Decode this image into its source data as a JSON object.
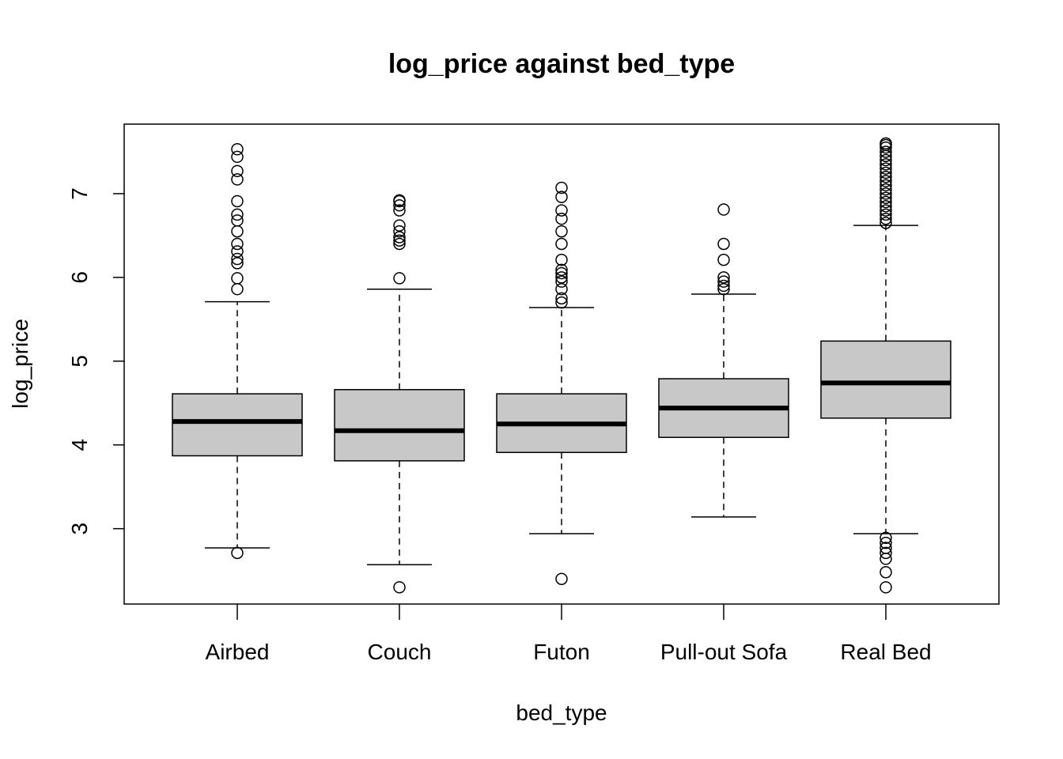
{
  "chart_data": {
    "type": "boxplot",
    "title": "log_price against bed_type",
    "xlabel": "bed_type",
    "ylabel": "log_price",
    "ylim": [
      2.1,
      7.83
    ],
    "yticks": [
      3,
      4,
      5,
      6,
      7
    ],
    "grid": false,
    "box_fill": "#c8c8c8",
    "categories": [
      "Airbed",
      "Couch",
      "Futon",
      "Pull-out Sofa",
      "Real Bed"
    ],
    "boxes": [
      {
        "name": "Airbed",
        "whisker_low": 2.77,
        "q1": 3.87,
        "median": 4.28,
        "q3": 4.61,
        "whisker_high": 5.71,
        "outliers": [
          2.71,
          5.86,
          5.99,
          6.17,
          6.22,
          6.31,
          6.4,
          6.55,
          6.68,
          6.75,
          6.91,
          7.17,
          7.27,
          7.44,
          7.53
        ]
      },
      {
        "name": "Couch",
        "whisker_low": 2.57,
        "q1": 3.81,
        "median": 4.17,
        "q3": 4.66,
        "whisker_high": 5.86,
        "outliers": [
          2.3,
          5.99,
          6.4,
          6.44,
          6.48,
          6.55,
          6.62,
          6.8,
          6.86,
          6.91,
          6.92
        ]
      },
      {
        "name": "Futon",
        "whisker_low": 2.94,
        "q1": 3.91,
        "median": 4.25,
        "q3": 4.61,
        "whisker_high": 5.64,
        "outliers": [
          2.4,
          5.7,
          5.75,
          5.86,
          5.95,
          6.0,
          6.05,
          6.09,
          6.21,
          6.4,
          6.55,
          6.7,
          6.8,
          6.96,
          7.07
        ]
      },
      {
        "name": "Pull-out Sofa",
        "whisker_low": 3.14,
        "q1": 4.09,
        "median": 4.44,
        "q3": 4.79,
        "whisker_high": 5.8,
        "outliers": [
          5.86,
          5.9,
          5.95,
          6.0,
          6.21,
          6.4,
          6.81
        ]
      },
      {
        "name": "Real Bed",
        "whisker_low": 2.94,
        "q1": 4.32,
        "median": 4.74,
        "q3": 5.24,
        "whisker_high": 6.62,
        "outliers": [
          2.3,
          2.48,
          2.64,
          2.71,
          2.77,
          2.83,
          2.89,
          6.65,
          6.7,
          6.75,
          6.8,
          6.85,
          6.9,
          6.95,
          7.0,
          7.05,
          7.1,
          7.15,
          7.2,
          7.25,
          7.3,
          7.35,
          7.4,
          7.45,
          7.5,
          7.55,
          7.58,
          7.6
        ]
      }
    ]
  }
}
